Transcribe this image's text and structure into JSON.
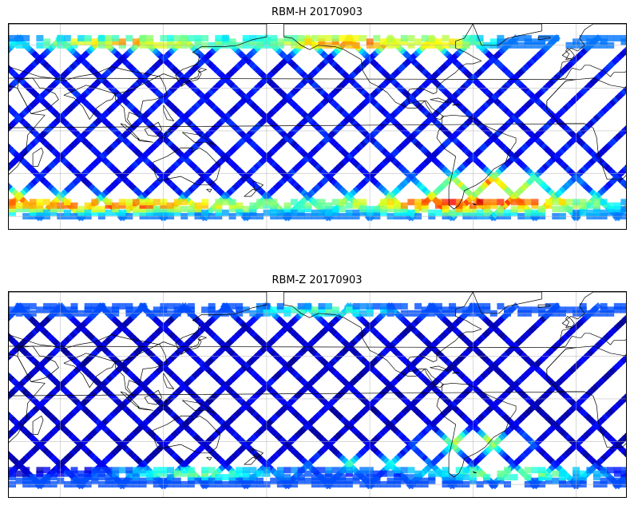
{
  "panels": [
    {
      "title": "RBM-H 20170903",
      "hotspots": [
        {
          "lat": 62,
          "lon": 100,
          "lat_span": 5,
          "lon_span": 80,
          "level": 0.75
        },
        {
          "lat": 62,
          "lon": 230,
          "lat_span": 6,
          "lon_span": 60,
          "level": 0.85
        },
        {
          "lat": 62,
          "lon": 280,
          "lat_span": 5,
          "lon_span": 30,
          "level": 0.7
        },
        {
          "lat": -48,
          "lon": 10,
          "lat_span": 8,
          "lon_span": 60,
          "level": 0.9
        },
        {
          "lat": -52,
          "lon": 100,
          "lat_span": 6,
          "lon_span": 110,
          "level": 0.85
        },
        {
          "lat": -50,
          "lon": 300,
          "lat_span": 9,
          "lon_span": 90,
          "level": 0.95
        },
        {
          "lat": -35,
          "lon": 310,
          "lat_span": 8,
          "lon_span": 40,
          "level": 0.8
        },
        {
          "lat": -40,
          "lon": 10,
          "lat_span": 6,
          "lon_span": 20,
          "level": 0.7
        }
      ],
      "base_level": 0.12
    },
    {
      "title": "RBM-Z 20170903",
      "hotspots": [
        {
          "lat": 62,
          "lon": 210,
          "lat_span": 4,
          "lon_span": 60,
          "level": 0.5
        },
        {
          "lat": -52,
          "lon": 140,
          "lat_span": 5,
          "lon_span": 60,
          "level": 0.55
        },
        {
          "lat": -52,
          "lon": 320,
          "lat_span": 6,
          "lon_span": 60,
          "level": 0.6
        },
        {
          "lat": -30,
          "lon": 300,
          "lat_span": 8,
          "lon_span": 30,
          "level": 0.7
        },
        {
          "lat": -45,
          "lon": 240,
          "lat_span": 6,
          "lon_span": 40,
          "level": 0.5
        }
      ],
      "base_level": 0.08
    }
  ],
  "map": {
    "lon_range": [
      30,
      390
    ],
    "lat_range": [
      -70,
      75
    ],
    "swath_lat_range": [
      -60,
      65
    ],
    "gridlines": true,
    "colormap": "jet",
    "coastline_color": "#000000",
    "grid_color": "#b0b0b0"
  }
}
